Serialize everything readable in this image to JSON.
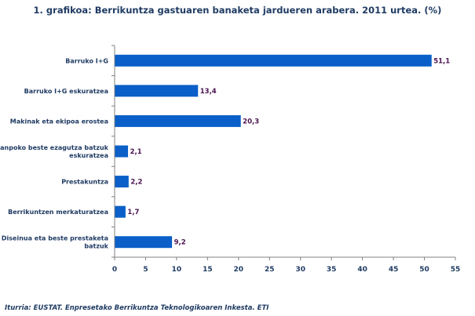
{
  "chart_data": {
    "type": "bar",
    "orientation": "horizontal",
    "title": "1. grafikoa: Berrikuntza gastuaren banaketa jardueren arabera. 2011 urtea. (%)",
    "categories": [
      [
        "Barruko I+G"
      ],
      [
        "Barruko I+G eskuratzea"
      ],
      [
        "Makinak eta ekipoa erostea"
      ],
      [
        "Kanpoko beste ezagutza batzuk",
        "eskuratzea"
      ],
      [
        "Prestakuntza"
      ],
      [
        "Berrikuntzen merkaturatzea"
      ],
      [
        "Diseinua eta beste prestaketa",
        "batzuk"
      ]
    ],
    "values": [
      51.1,
      13.4,
      20.3,
      2.1,
      2.2,
      1.7,
      9.2
    ],
    "value_labels": [
      "51,1",
      "13,4",
      "20,3",
      "2,1",
      "2,2",
      "1,7",
      "9,2"
    ],
    "xlim": [
      0,
      55
    ],
    "xticks": [
      0,
      5,
      10,
      15,
      20,
      25,
      30,
      35,
      40,
      45,
      50,
      55
    ],
    "bar_color": "#0a5fc8",
    "label_color": "#4a1250",
    "text_color": "#1f3b63"
  },
  "source": "Iturria: EUSTAT. Enpresetako Berrikuntza Teknologikoaren Inkesta. ETI"
}
